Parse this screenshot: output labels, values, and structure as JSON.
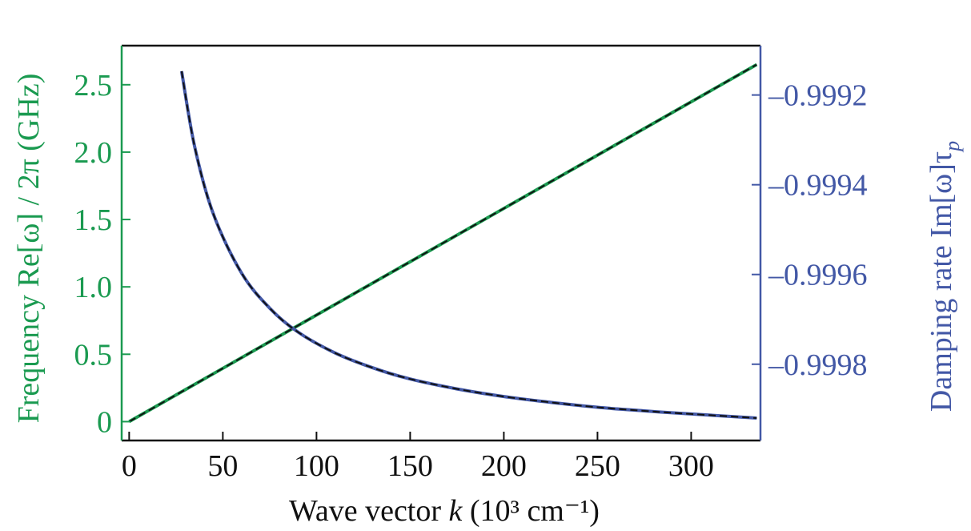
{
  "chart_data": {
    "type": "line",
    "xlabel_prefix": "Wave vector ",
    "xlabel_var": "k",
    "xlabel_unit": " (10³ cm⁻¹)",
    "ylabel_left": "Frequency Re[ω] / 2π (GHz)",
    "ylabel_right_main": "Damping rate Im[ω]τ",
    "ylabel_right_sub": "p",
    "xlim": [
      -4,
      337
    ],
    "ylim_left": [
      -0.14,
      2.79
    ],
    "ylim_right": [
      -0.99997,
      -0.99909
    ],
    "x_ticks": [
      "0",
      "50",
      "100",
      "150",
      "200",
      "250",
      "300"
    ],
    "x_tick_values": [
      0,
      50,
      100,
      150,
      200,
      250,
      300
    ],
    "y_left_ticks": [
      "0",
      "0.5",
      "1.0",
      "1.5",
      "2.0",
      "2.5"
    ],
    "y_left_tick_values": [
      0,
      0.5,
      1.0,
      1.5,
      2.0,
      2.5
    ],
    "y_right_ticks": [
      "–0.9992",
      "–0.9994",
      "–0.9996",
      "–0.9998"
    ],
    "y_right_tick_values": [
      -0.9992,
      -0.9994,
      -0.9996,
      -0.9998
    ],
    "grid": false,
    "colors": {
      "left": "#1a9a50",
      "right": "#4358a6",
      "dash": "#111111"
    },
    "series": [
      {
        "name": "Frequency",
        "axis": "left",
        "x": [
          0,
          335
        ],
        "y": [
          0,
          2.65
        ]
      },
      {
        "name": "Damping rate",
        "axis": "right",
        "x": [
          28,
          35,
          45,
          60,
          75,
          90,
          110,
          130,
          150,
          175,
          200,
          225,
          250,
          275,
          300,
          335
        ],
        "y": [
          -0.999147,
          -0.999316,
          -0.999466,
          -0.999597,
          -0.999675,
          -0.999728,
          -0.999775,
          -0.999808,
          -0.999833,
          -0.999855,
          -0.999872,
          -0.999885,
          -0.999896,
          -0.999904,
          -0.999911,
          -0.99992
        ]
      }
    ]
  }
}
